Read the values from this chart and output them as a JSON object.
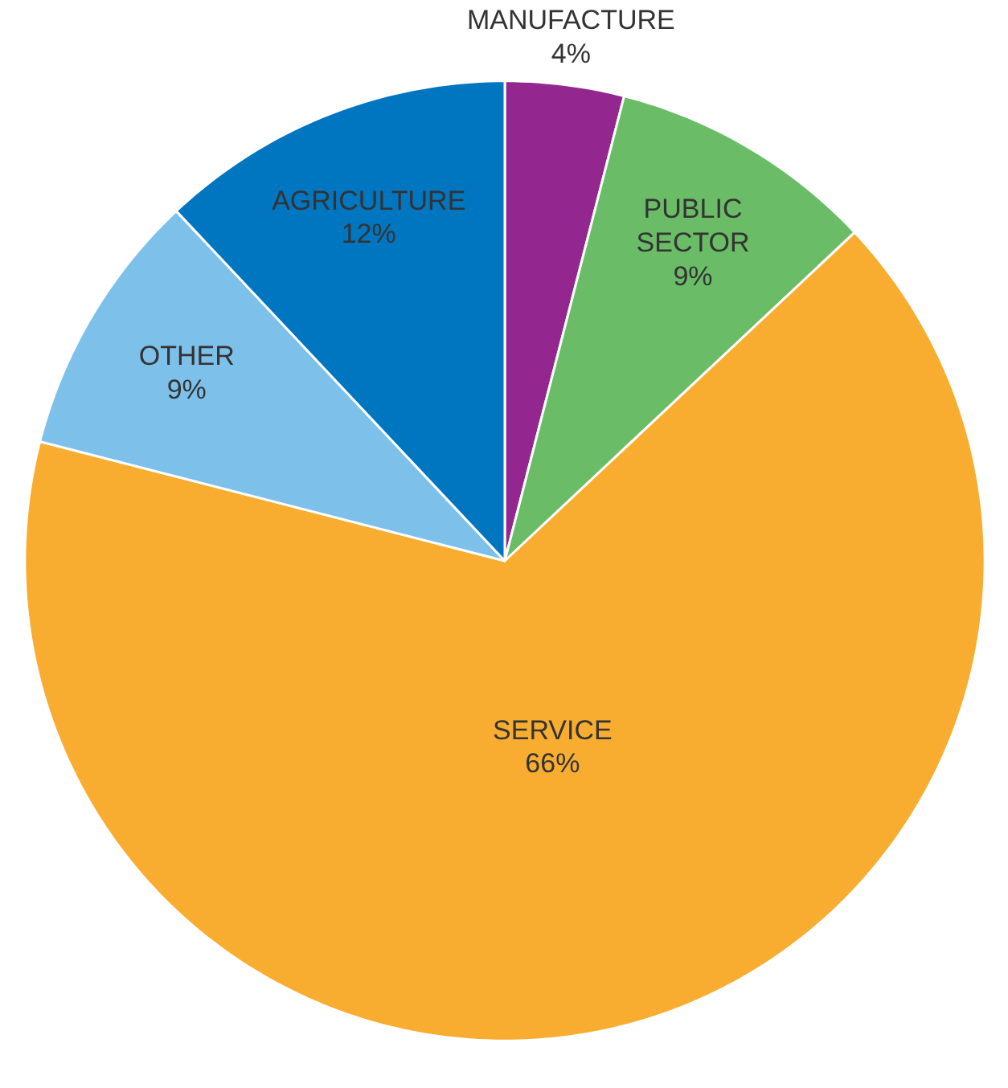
{
  "chart_data": {
    "type": "pie",
    "categories": [
      "MANUFACTURE",
      "PUBLIC SECTOR",
      "SERVICE",
      "OTHER",
      "AGRICULTURE"
    ],
    "values": [
      4,
      9,
      66,
      9,
      12
    ],
    "value_labels": [
      "4%",
      "9%",
      "66%",
      "9%",
      "12%"
    ],
    "colors": [
      "#93278f",
      "#6abd66",
      "#f9ad30",
      "#7dc1eb",
      "#0076c0"
    ],
    "legend": false
  }
}
